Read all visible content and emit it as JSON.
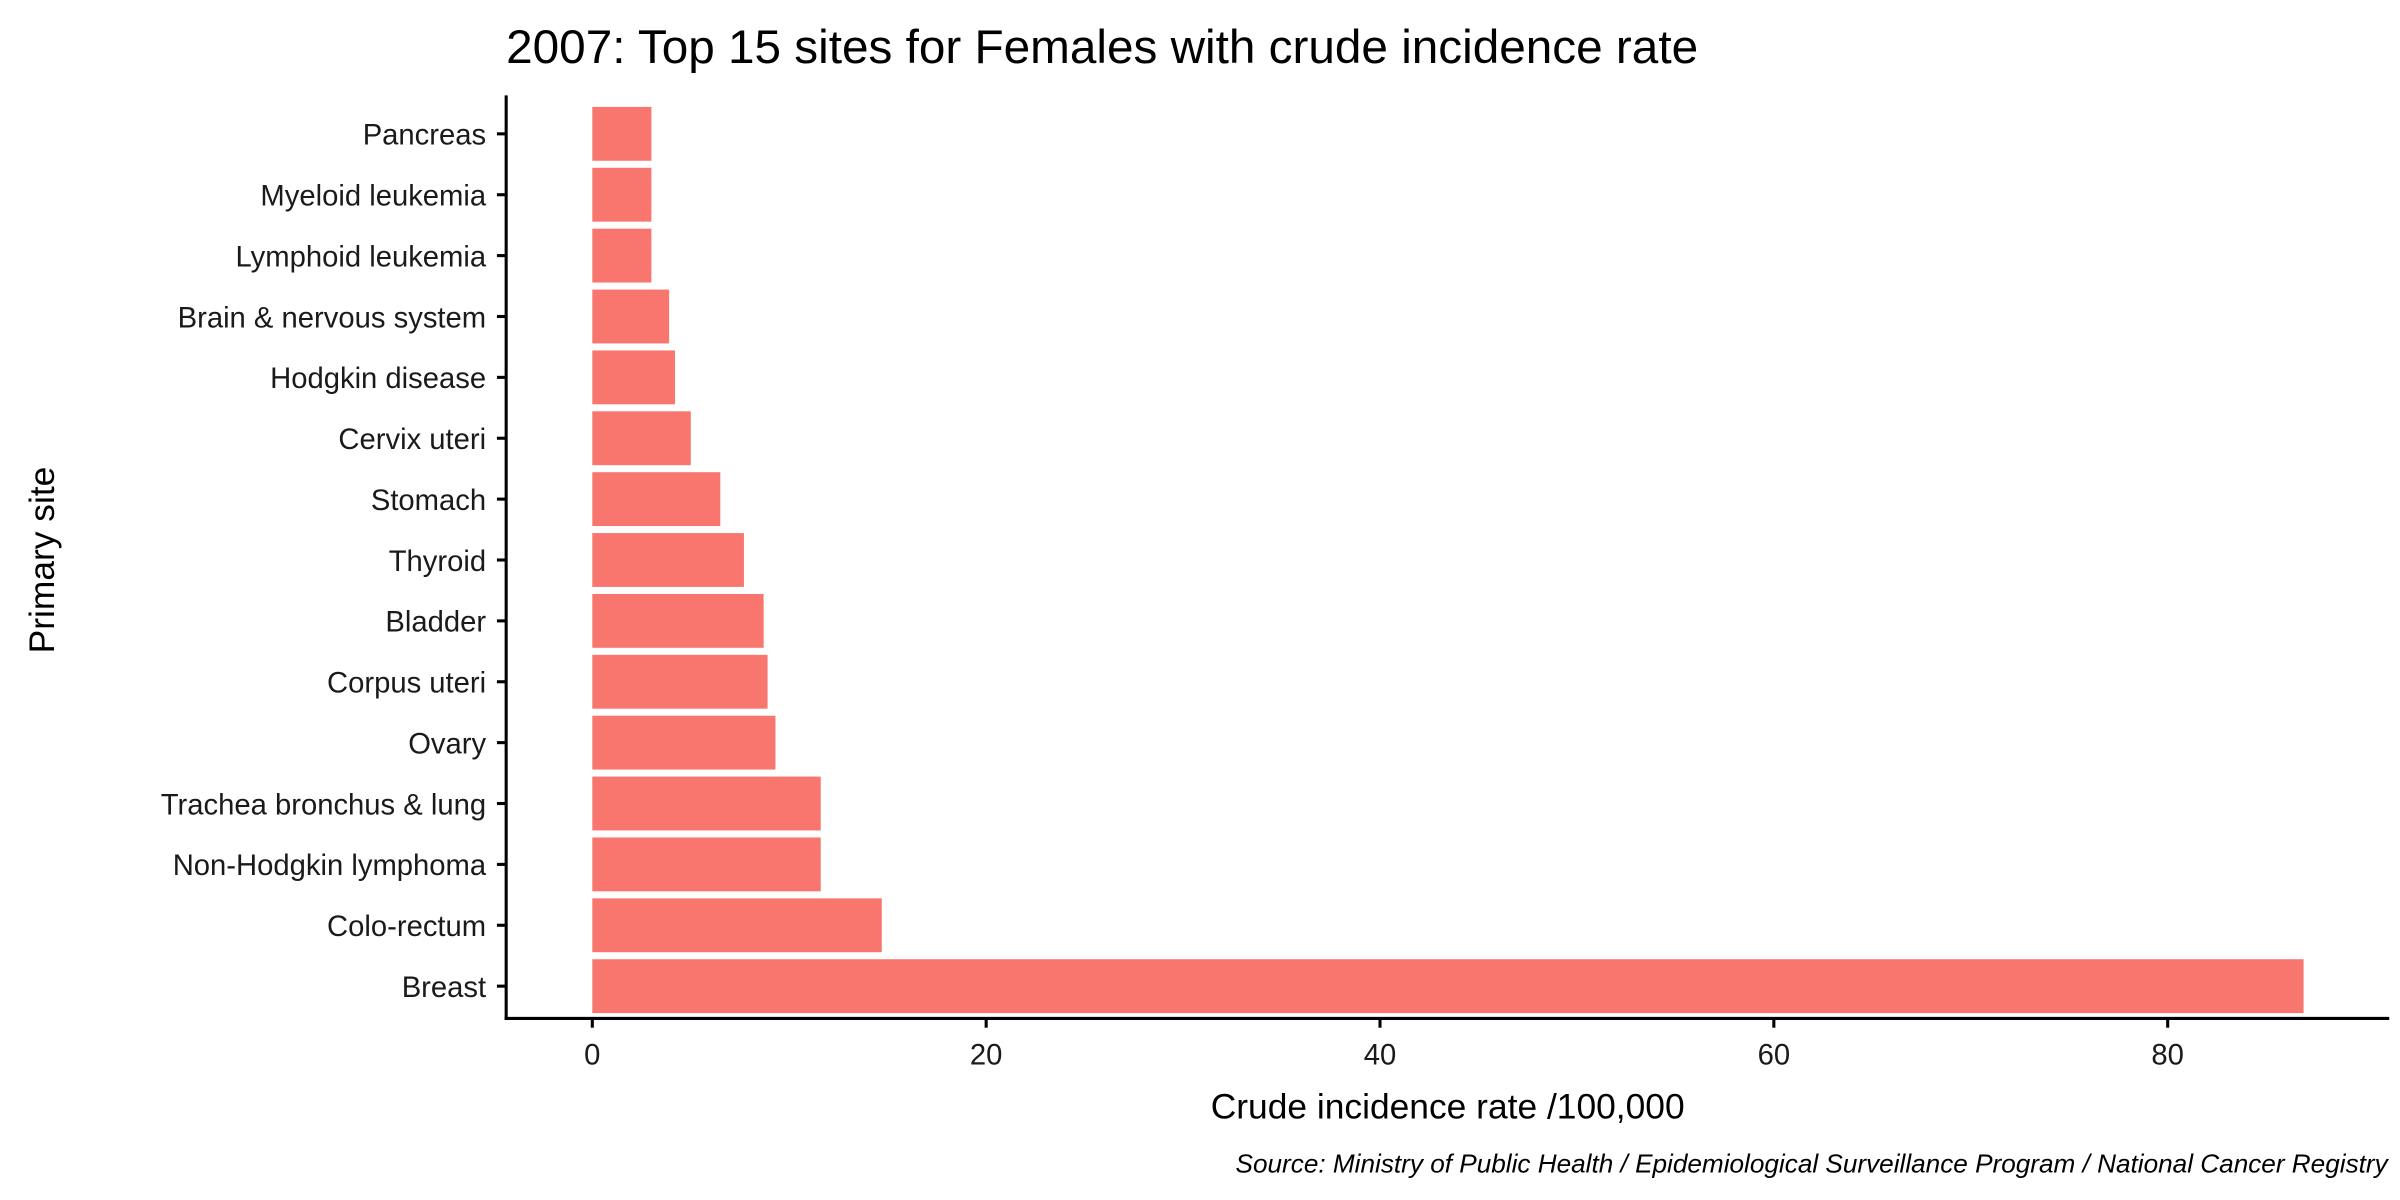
{
  "chart_data": {
    "type": "bar",
    "orientation": "horizontal",
    "title": "2007: Top 15 sites for Females with crude incidence rate",
    "xlabel": "Crude incidence rate /100,000",
    "ylabel": "Primary site",
    "caption": "Source: Ministry of Public Health / Epidemiological Surveillance Program / National Cancer Registry",
    "categories": [
      "Pancreas",
      "Myeloid leukemia",
      "Lymphoid leukemia",
      "Brain & nervous system",
      "Hodgkin disease",
      "Cervix uteri",
      "Stomach",
      "Thyroid",
      "Bladder",
      "Corpus uteri",
      "Ovary",
      "Trachea bronchus & lung",
      "Non-Hodgkin lymphoma",
      "Colo-rectum",
      "Breast"
    ],
    "values": [
      3.0,
      3.0,
      3.0,
      3.9,
      4.2,
      5.0,
      6.5,
      7.7,
      8.7,
      8.9,
      9.3,
      11.6,
      11.6,
      14.7,
      86.9
    ],
    "xticks": [
      "0",
      "20",
      "40",
      "60",
      "80"
    ],
    "xlim": [
      -4.3,
      91.3
    ],
    "grid": false,
    "legend": "none",
    "bar_color": "#F8766D"
  }
}
